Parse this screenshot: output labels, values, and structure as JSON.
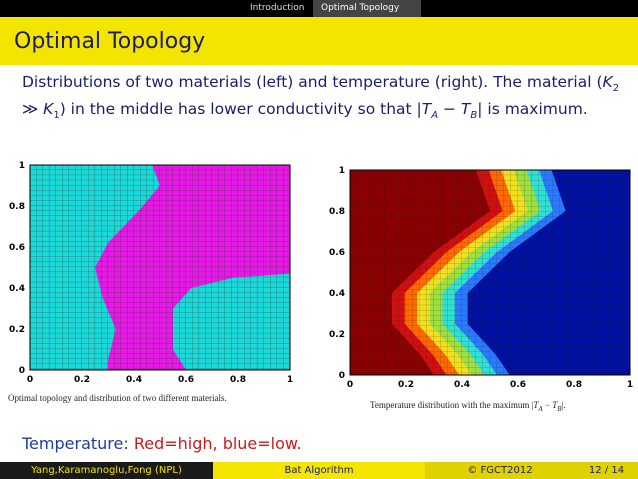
{
  "nav": [
    "Introduction",
    "Optimal Topology"
  ],
  "title": "Optimal Topology",
  "body": [
    "Distributions of two materials (left) and temperature (right). The material (",
    "K",
    "2",
    " ≫ ",
    "K",
    "1",
    ") in the middle has lower conductivity so that |",
    "T",
    "A",
    " − ",
    "T",
    "B",
    "| is maximum."
  ],
  "left_figure": {
    "yticks": [
      "0",
      "0.2",
      "0.4",
      "0.6",
      "0.8",
      "1"
    ],
    "xticks": [
      "0",
      "0.2",
      "0.4",
      "0.6",
      "0.8",
      "1"
    ],
    "caption": "Optimal topology and distribution of two different materials."
  },
  "right_figure": {
    "yticks": [
      "0",
      "0.2",
      "0.4",
      "0.6",
      "0.8",
      "1"
    ],
    "xticks": [
      "0",
      "0.2",
      "0.4",
      "0.6",
      "0.8",
      "1"
    ],
    "caption": [
      "Temperature distribution with the maximum |",
      "T",
      "A",
      " − ",
      "T",
      "B",
      "|."
    ]
  },
  "note": [
    "Temperature: ",
    "Red=high, blue=low."
  ],
  "footer": {
    "author": "Yang,Karamanoglu,Fong (NPL)",
    "talk": "Bat Algorithm",
    "event": "© FGCT2012",
    "page": "12 / 14"
  }
}
